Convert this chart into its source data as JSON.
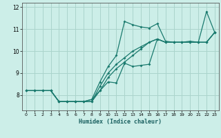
{
  "title": "",
  "xlabel": "Humidex (Indice chaleur)",
  "background_color": "#cceee8",
  "grid_color": "#aad4cc",
  "line_color": "#1a7a6e",
  "xlim": [
    -0.5,
    23.5
  ],
  "ylim": [
    7.3,
    12.2
  ],
  "yticks": [
    8,
    9,
    10,
    11,
    12
  ],
  "xticks": [
    0,
    1,
    2,
    3,
    4,
    5,
    6,
    7,
    8,
    9,
    10,
    11,
    12,
    13,
    14,
    15,
    16,
    17,
    18,
    19,
    20,
    21,
    22,
    23
  ],
  "lines": [
    {
      "x": [
        0,
        1,
        2,
        3,
        4,
        5,
        6,
        7,
        8,
        9,
        10,
        11,
        12,
        13,
        14,
        15,
        16,
        17,
        18,
        19,
        20,
        21,
        22,
        23
      ],
      "y": [
        8.2,
        8.2,
        8.2,
        8.2,
        7.7,
        7.7,
        7.7,
        7.7,
        7.8,
        8.6,
        9.3,
        9.8,
        11.35,
        11.2,
        11.1,
        11.05,
        11.25,
        10.45,
        10.4,
        10.4,
        10.45,
        10.4,
        11.8,
        10.85
      ]
    },
    {
      "x": [
        0,
        1,
        2,
        3,
        4,
        5,
        6,
        7,
        8,
        9,
        10,
        11,
        12,
        13,
        14,
        15,
        16,
        17,
        18,
        19,
        20,
        21,
        22,
        23
      ],
      "y": [
        8.2,
        8.2,
        8.2,
        8.2,
        7.7,
        7.7,
        7.7,
        7.7,
        7.7,
        8.4,
        9.0,
        9.4,
        9.7,
        10.0,
        10.2,
        10.4,
        10.55,
        10.4,
        10.4,
        10.4,
        10.4,
        10.4,
        10.4,
        10.85
      ]
    },
    {
      "x": [
        0,
        1,
        2,
        3,
        4,
        5,
        6,
        7,
        8,
        9,
        10,
        11,
        12,
        13,
        14,
        15,
        16,
        17,
        18,
        19,
        20,
        21,
        22,
        23
      ],
      "y": [
        8.2,
        8.2,
        8.2,
        8.2,
        7.7,
        7.7,
        7.7,
        7.7,
        7.7,
        8.2,
        8.8,
        9.2,
        9.5,
        9.8,
        10.1,
        10.4,
        10.55,
        10.4,
        10.4,
        10.4,
        10.4,
        10.4,
        10.4,
        10.85
      ]
    },
    {
      "x": [
        3,
        4,
        5,
        6,
        7,
        8,
        9,
        10,
        11,
        12,
        13,
        14,
        15,
        16,
        17,
        18,
        19,
        20,
        21,
        22,
        23
      ],
      "y": [
        8.2,
        7.7,
        7.7,
        7.7,
        7.7,
        7.8,
        8.2,
        8.6,
        8.55,
        9.45,
        9.3,
        9.35,
        9.4,
        10.55,
        10.4,
        10.4,
        10.4,
        10.4,
        10.4,
        10.4,
        10.85
      ]
    }
  ]
}
